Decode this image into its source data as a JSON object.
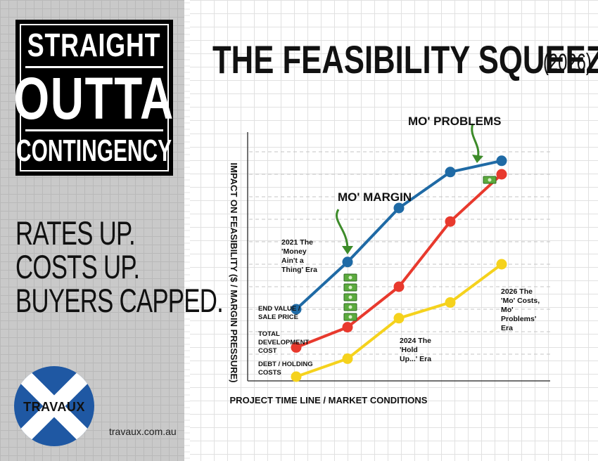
{
  "brand": {
    "logo_line1": "STRAIGHT",
    "logo_line2": "OUTTA",
    "logo_line3": "CONTINGENCY",
    "tagline": [
      "RATES UP.",
      "COSTS UP.",
      "BUYERS CAPPED."
    ],
    "company": "TRAVAUX",
    "website": "travaux.com.au",
    "circle_color": "#1f58a3"
  },
  "title": {
    "main": "THE FEASIBILITY SQUEEZE",
    "year": "(2026)"
  },
  "chart_data": {
    "type": "line",
    "xlabel": "PROJECT TIME LINE / MARKET CONDITIONS",
    "ylabel": "IMPACT ON FEASIBILITY ($ / MARGIN PRESSURE)",
    "x": [
      1,
      2,
      3,
      4,
      5
    ],
    "ylim": [
      0,
      10
    ],
    "grid": true,
    "series": [
      {
        "name": "END VALUE / SALE PRICE",
        "color": "#1f6aa5",
        "values": [
          3.0,
          5.1,
          7.5,
          9.1,
          9.6
        ]
      },
      {
        "name": "TOTAL DEVELOPMENT COST",
        "color": "#e8392d",
        "values": [
          1.3,
          2.2,
          4.0,
          6.9,
          9.0
        ]
      },
      {
        "name": "DEBT / HOLDING COSTS",
        "color": "#f5d21d",
        "values": [
          0.0,
          0.8,
          2.6,
          3.3,
          5.0
        ]
      }
    ],
    "annotations": {
      "mo_margin": "MO' MARGIN",
      "mo_problems": "MO' PROBLEMS",
      "era_2021": "2021 The 'Money Ain't a Thing' Era",
      "era_2024": "2024 The 'Hold Up...' Era",
      "era_2026": "2026 The 'Mo' Costs, Mo' Problems' Era"
    }
  }
}
